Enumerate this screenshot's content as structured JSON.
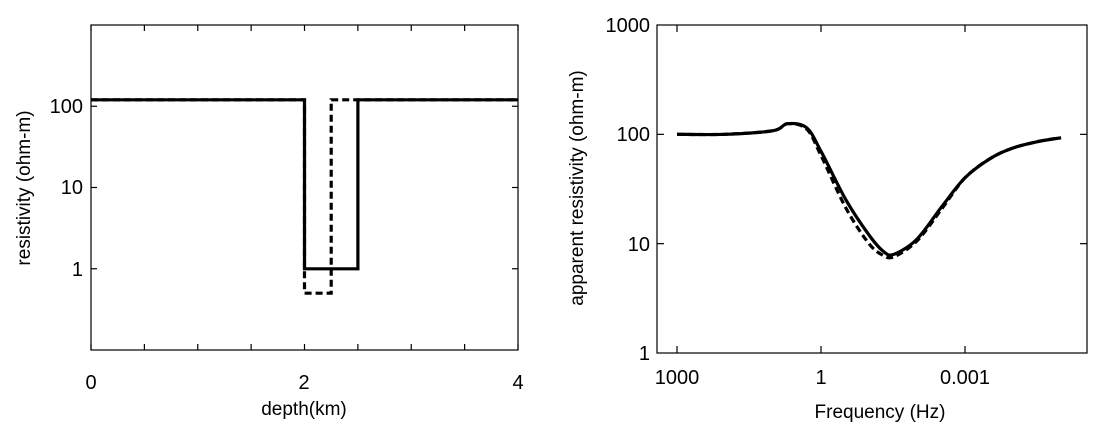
{
  "chart_data": [
    {
      "type": "line",
      "xlabel": "depth(km)",
      "ylabel": "resistivity (ohm-m)",
      "xlim": [
        0,
        4
      ],
      "ylim": [
        0.1,
        1000
      ],
      "yscale": "log",
      "grid": false,
      "x_tick_labels": [
        "0",
        "2",
        "4"
      ],
      "y_tick_labels": [
        "100",
        "10",
        "1"
      ],
      "series": [
        {
          "style": "solid",
          "x": [
            0,
            2.0,
            2.0,
            2.5,
            2.5,
            4
          ],
          "y": [
            120,
            120,
            1,
            1,
            120,
            120
          ]
        },
        {
          "style": "dashed",
          "x": [
            0,
            2.0,
            2.0,
            2.25,
            2.25,
            4
          ],
          "y": [
            120,
            120,
            0.5,
            0.5,
            120,
            120
          ]
        }
      ]
    },
    {
      "type": "line",
      "xlabel": "Frequency (Hz)",
      "ylabel": "apparent resistivity (ohm-m)",
      "xlim": [
        1000,
        1e-05
      ],
      "ylim": [
        1,
        1000
      ],
      "xscale": "log",
      "yscale": "log",
      "grid": false,
      "x_tick_labels": [
        "1000",
        "1",
        "0.001"
      ],
      "y_tick_labels": [
        "1000",
        "100",
        "10",
        "1"
      ],
      "series": [
        {
          "style": "solid",
          "x": [
            1000,
            100,
            10,
            5,
            2,
            1,
            0.3,
            0.1,
            0.05,
            0.03,
            0.01,
            0.003,
            0.001,
            0.0003,
            0.0001,
            3e-05,
            1e-05
          ],
          "y": [
            100,
            100,
            108,
            125,
            115,
            70,
            25,
            12,
            8.5,
            8,
            11,
            22,
            40,
            60,
            75,
            86,
            93
          ]
        },
        {
          "style": "dashed",
          "x": [
            1000,
            100,
            10,
            5,
            2,
            1,
            0.3,
            0.1,
            0.05,
            0.03,
            0.01,
            0.003,
            0.001,
            0.0003,
            0.0001,
            3e-05,
            1e-05
          ],
          "y": [
            100,
            100,
            108,
            125,
            112,
            64,
            21,
            10,
            7.8,
            7.6,
            10.6,
            21,
            40,
            60,
            75,
            86,
            93
          ]
        }
      ]
    }
  ]
}
